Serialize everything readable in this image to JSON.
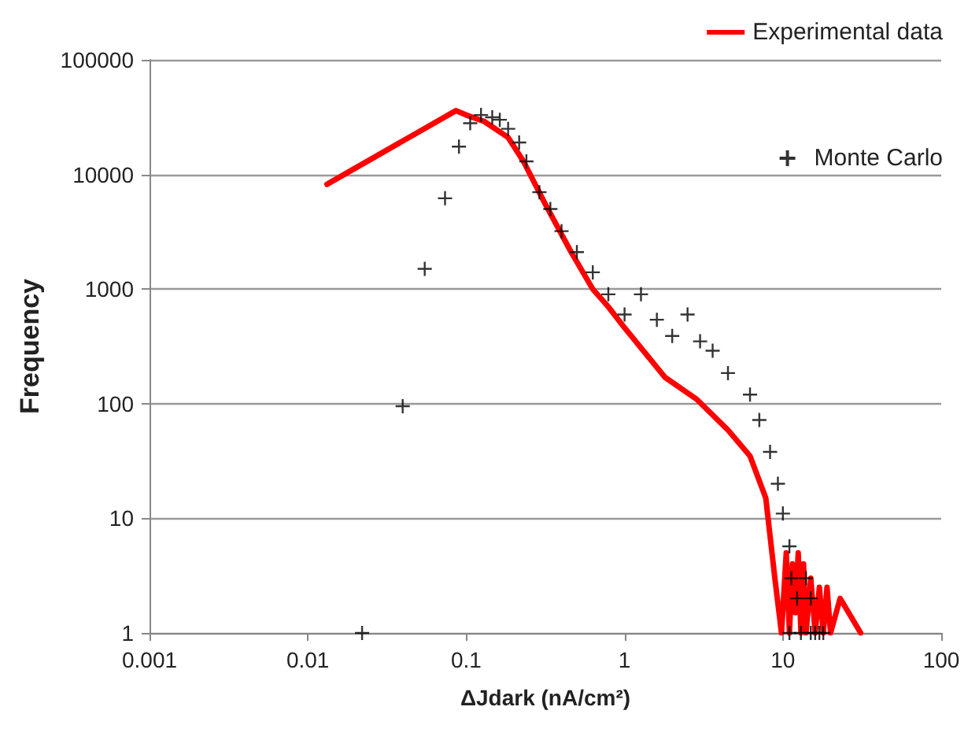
{
  "chart_data": {
    "type": "line",
    "xlabel": "ΔJdark (nA/cm²)",
    "ylabel": "Frequency",
    "log": "xy",
    "grid": "y",
    "legend": "top right",
    "xlim": [
      0.001,
      100
    ],
    "xticks": [
      0.001,
      0.01,
      0.1,
      1,
      10,
      100
    ],
    "ylim": [
      1,
      100000
    ],
    "yticks": [
      1,
      10,
      100,
      1000,
      10000,
      100000
    ],
    "series": [
      {
        "name": "Experimental data",
        "color": "#ff0000",
        "marker": "none",
        "line_style": "solid",
        "x": [
          0.0132,
          0.086,
          0.1,
          0.13,
          0.184,
          0.23,
          0.316,
          0.46,
          0.63,
          0.79,
          1.0,
          1.8,
          2.84,
          4.5,
          6.2,
          7.8,
          8.3,
          8.9,
          9.8,
          10.5,
          11,
          11.5,
          12,
          12.5,
          13,
          13.5,
          14,
          15,
          16,
          17,
          18,
          19,
          20,
          23,
          31
        ],
        "values": [
          8200,
          36000,
          33000,
          29000,
          21000,
          13000,
          5500,
          2100,
          1000,
          700,
          460,
          170,
          110,
          59,
          35,
          15,
          7,
          3,
          1,
          5,
          1,
          4,
          1.5,
          5,
          1,
          4,
          1,
          3,
          1,
          2.5,
          1,
          2.5,
          1,
          2,
          1
        ]
      },
      {
        "name": "Monte Carlo",
        "type": "scatter",
        "color": "#000000",
        "marker": "cross",
        "x": [
          0.022,
          0.0397,
          0.0547,
          0.0735,
          0.09,
          0.106,
          0.124,
          0.146,
          0.163,
          0.184,
          0.216,
          0.24,
          0.29,
          0.34,
          0.4,
          0.5,
          0.63,
          0.79,
          1.0,
          1.27,
          1.6,
          2.0,
          2.5,
          3.0,
          3.6,
          4.5,
          6.2,
          7.1,
          8.3,
          9.3,
          10,
          11,
          11.3,
          12.3,
          13,
          14,
          15,
          16,
          17,
          18,
          11,
          15
        ],
        "values": [
          1,
          95,
          1500,
          6200,
          17500,
          28000,
          33000,
          31500,
          30000,
          25000,
          19000,
          13000,
          7000,
          5000,
          3200,
          2100,
          1400,
          900,
          600,
          900,
          540,
          390,
          600,
          350,
          290,
          185,
          120,
          72,
          38,
          20,
          11,
          5.7,
          3,
          2,
          1,
          3,
          2,
          1,
          1,
          1,
          1,
          1
        ]
      }
    ]
  }
}
